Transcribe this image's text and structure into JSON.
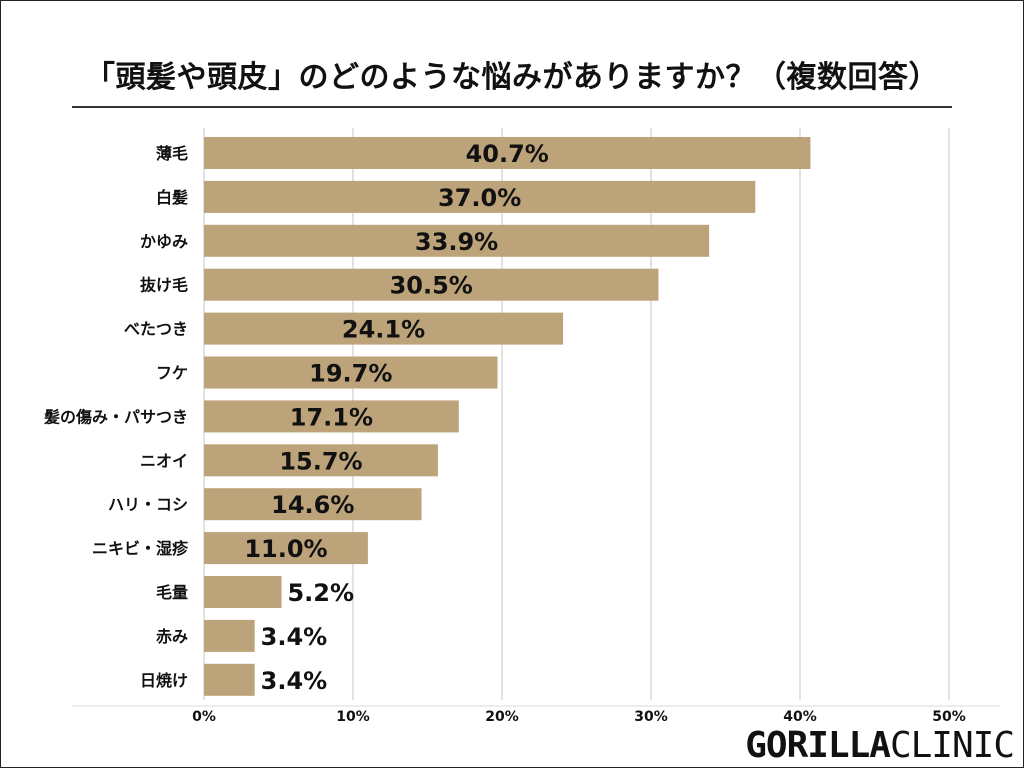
{
  "chart_data": {
    "type": "bar",
    "orientation": "horizontal",
    "title": "「頭髪や頭皮」のどのような悩みがありますか？（複数回答）",
    "categories": [
      "薄毛",
      "白髪",
      "かゆみ",
      "抜け毛",
      "べたつき",
      "フケ",
      "髪の傷み・パサつき",
      "ニオイ",
      "ハリ・コシ",
      "ニキビ・湿疹",
      "毛量",
      "赤み",
      "日焼け"
    ],
    "values": [
      40.7,
      37.0,
      33.9,
      30.5,
      24.1,
      19.7,
      17.1,
      15.7,
      14.6,
      11.0,
      5.2,
      3.4,
      3.4
    ],
    "value_labels": [
      "40.7%",
      "37.0%",
      "33.9%",
      "30.5%",
      "24.1%",
      "19.7%",
      "17.1%",
      "15.7%",
      "14.6%",
      "11.0%",
      "5.2%",
      "3.4%",
      "3.4%"
    ],
    "xticks": [
      0,
      10,
      20,
      30,
      40,
      50
    ],
    "xtick_labels": [
      "0%",
      "10%",
      "20%",
      "30%",
      "40%",
      "50%"
    ],
    "xlim": [
      0,
      50
    ],
    "grid": true,
    "bar_color": "#bca37a"
  },
  "logo": {
    "bold": "GORILLA",
    "light": "CLINIC"
  }
}
